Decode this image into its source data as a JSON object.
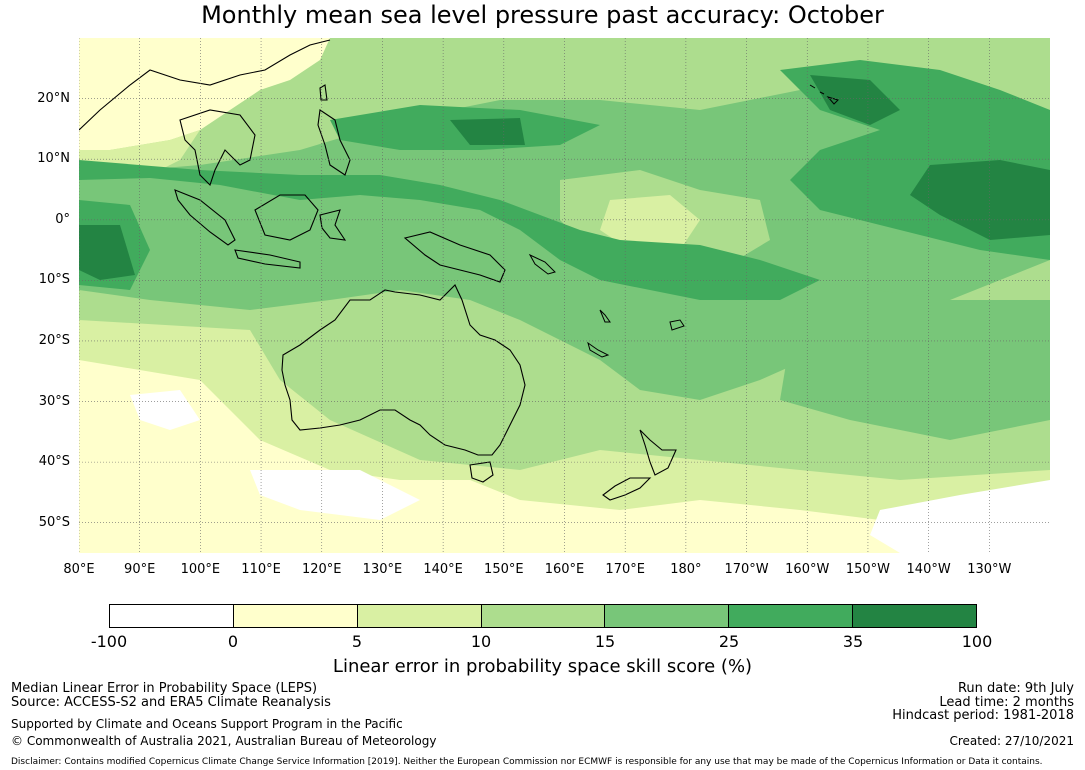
{
  "title": "Monthly mean sea level pressure past accuracy: October",
  "map": {
    "lat_labels": [
      "20°N",
      "10°N",
      "0°",
      "10°S",
      "20°S",
      "30°S",
      "40°S",
      "50°S"
    ],
    "lon_labels": [
      "80°E",
      "90°E",
      "100°E",
      "110°E",
      "120°E",
      "130°E",
      "140°E",
      "150°E",
      "160°E",
      "170°E",
      "180°",
      "170°W",
      "160°W",
      "150°W",
      "140°W",
      "130°W"
    ],
    "extent": {
      "lon_min": 80,
      "lon_max": 240,
      "lat_min": -55,
      "lat_max": 30
    }
  },
  "colorbar": {
    "ticks": [
      "-100",
      "0",
      "5",
      "10",
      "15",
      "25",
      "35",
      "100"
    ],
    "colors": [
      "#ffffff",
      "#ffffcc",
      "#d9f0a3",
      "#addd8e",
      "#78c679",
      "#41ab5d",
      "#238443"
    ],
    "label": "Linear error in probability space skill score (%)"
  },
  "footer": {
    "line1": "Median Linear Error in Probability Space (LEPS)",
    "line2": "Source: ACCESS-S2 and ERA5 Climate Reanalysis",
    "line3": "Supported by Climate and Oceans Support Program in the Pacific",
    "line4": "© Commonwealth of Australia 2021, Australian Bureau of Meteorology",
    "run_date": "Run date: 9th July",
    "lead_time": "Lead time: 2 months",
    "hindcast": "Hindcast period: 1981-2018",
    "created": "Created: 27/10/2021",
    "disclaimer": "Disclaimer: Contains modified Copernicus Climate Change Service Information [2019]. Neither the European Commission nor ECMWF is responsible for any use that may be made of the Copernicus Information or Data it contains."
  }
}
